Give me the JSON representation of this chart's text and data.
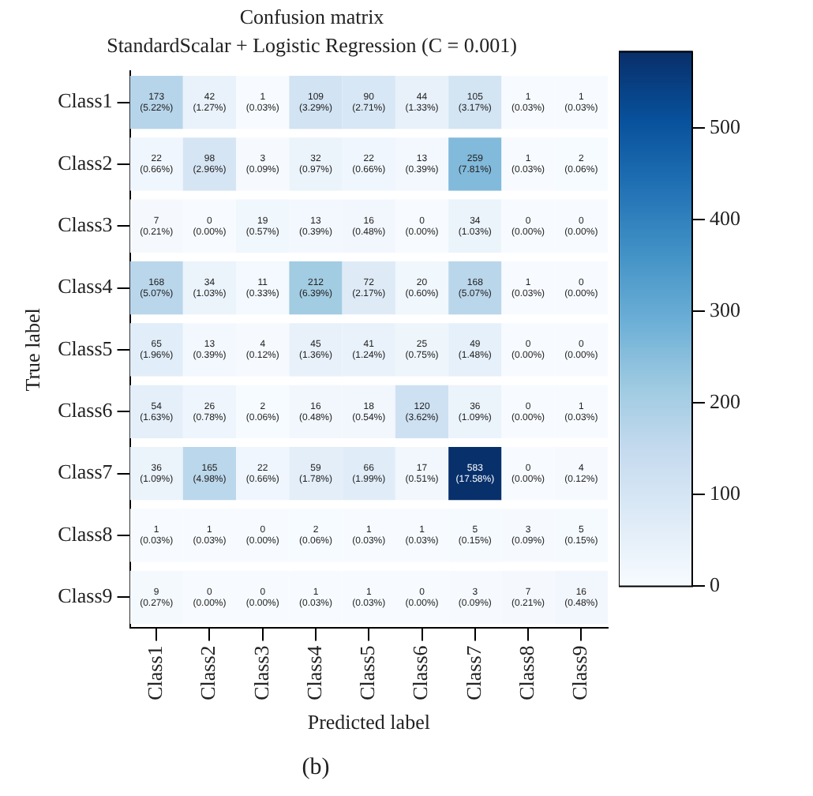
{
  "chart_data": {
    "type": "heatmap",
    "title": "Confusion matrix",
    "subtitle": "StandardScalar + Logistic Regression (C = 0.001)",
    "xlabel": "Predicted label",
    "ylabel": "True label",
    "categories": [
      "Class1",
      "Class2",
      "Class3",
      "Class4",
      "Class5",
      "Class6",
      "Class7",
      "Class8",
      "Class9"
    ],
    "y_categories": [
      "Class1",
      "Class2",
      "Class3",
      "Class4",
      "Class5",
      "Class6",
      "Class7",
      "Class8",
      "Class9"
    ],
    "cells": [
      [
        173,
        42,
        1,
        109,
        90,
        44,
        105,
        1,
        1
      ],
      [
        22,
        98,
        3,
        32,
        22,
        13,
        259,
        1,
        2
      ],
      [
        7,
        0,
        19,
        13,
        16,
        0,
        34,
        0,
        0
      ],
      [
        168,
        34,
        11,
        212,
        72,
        20,
        168,
        1,
        0
      ],
      [
        65,
        13,
        4,
        45,
        41,
        25,
        49,
        0,
        0
      ],
      [
        54,
        26,
        2,
        16,
        18,
        120,
        36,
        0,
        1
      ],
      [
        36,
        165,
        22,
        59,
        66,
        17,
        583,
        0,
        4
      ],
      [
        1,
        1,
        0,
        2,
        1,
        1,
        5,
        3,
        5
      ],
      [
        9,
        0,
        0,
        1,
        1,
        0,
        3,
        7,
        16
      ]
    ],
    "cell_labels": [
      [
        "173\n(5.22%)",
        "42\n(1.27%)",
        "1\n(0.03%)",
        "109\n(3.29%)",
        "90\n(2.71%)",
        "44\n(1.33%)",
        "105\n(3.17%)",
        "1\n(0.03%)",
        "1\n(0.03%)"
      ],
      [
        "22\n(0.66%)",
        "98\n(2.96%)",
        "3\n(0.09%)",
        "32\n(0.97%)",
        "22\n(0.66%)",
        "13\n(0.39%)",
        "259\n(7.81%)",
        "1\n(0.03%)",
        "2\n(0.06%)"
      ],
      [
        "7\n(0.21%)",
        "0\n(0.00%)",
        "19\n(0.57%)",
        "13\n(0.39%)",
        "16\n(0.48%)",
        "0\n(0.00%)",
        "34\n(1.03%)",
        "0\n(0.00%)",
        "0\n(0.00%)"
      ],
      [
        "168\n(5.07%)",
        "34\n(1.03%)",
        "11\n(0.33%)",
        "212\n(6.39%)",
        "72\n(2.17%)",
        "20\n(0.60%)",
        "168\n(5.07%)",
        "1\n(0.03%)",
        "0\n(0.00%)"
      ],
      [
        "65\n(1.96%)",
        "13\n(0.39%)",
        "4\n(0.12%)",
        "45\n(1.36%)",
        "41\n(1.24%)",
        "25\n(0.75%)",
        "49\n(1.48%)",
        "0\n(0.00%)",
        "0\n(0.00%)"
      ],
      [
        "54\n(1.63%)",
        "26\n(0.78%)",
        "2\n(0.06%)",
        "16\n(0.48%)",
        "18\n(0.54%)",
        "120\n(3.62%)",
        "36\n(1.09%)",
        "0\n(0.00%)",
        "1\n(0.03%)"
      ],
      [
        "36\n(1.09%)",
        "165\n(4.98%)",
        "22\n(0.66%)",
        "59\n(1.78%)",
        "66\n(1.99%)",
        "17\n(0.51%)",
        "583\n(17.58%)",
        "0\n(0.00%)",
        "4\n(0.12%)"
      ],
      [
        "1\n(0.03%)",
        "1\n(0.03%)",
        "0\n(0.00%)",
        "2\n(0.06%)",
        "1\n(0.03%)",
        "1\n(0.03%)",
        "5\n(0.15%)",
        "3\n(0.09%)",
        "5\n(0.15%)"
      ],
      [
        "9\n(0.27%)",
        "0\n(0.00%)",
        "0\n(0.00%)",
        "1\n(0.03%)",
        "1\n(0.03%)",
        "0\n(0.00%)",
        "3\n(0.09%)",
        "7\n(0.21%)",
        "16\n(0.48%)"
      ]
    ],
    "clim": [
      0,
      583
    ],
    "cticks": [
      0,
      100,
      200,
      300,
      400,
      500
    ],
    "annotations": [
      "(b)"
    ]
  }
}
